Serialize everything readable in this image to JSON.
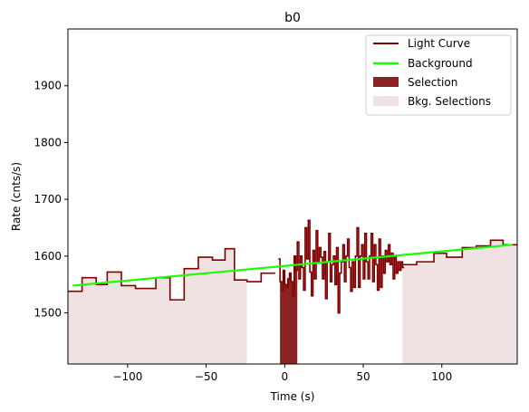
{
  "chart_data": {
    "type": "line",
    "title": "b0",
    "xlabel": "Time (s)",
    "ylabel": "Rate (cnts/s)",
    "xlim": [
      -138,
      148
    ],
    "ylim": [
      1410,
      2000
    ],
    "xticks": [
      -100,
      -50,
      0,
      50,
      100
    ],
    "yticks": [
      1500,
      1600,
      1700,
      1800,
      1900
    ],
    "grid": false,
    "legend_position": "top-right",
    "legend": [
      "Light Curve",
      "Background",
      "Selection",
      "Bkg. Selections"
    ],
    "colors": {
      "light_curve": "#800000",
      "background": "#19ff00",
      "selection": "#8b2323",
      "bkg_selection": "#f0e2e2"
    },
    "bkg_selections": [
      [
        -138,
        -24
      ],
      [
        75,
        148
      ]
    ],
    "selection": [
      -3,
      8
    ],
    "background_line": {
      "x": [
        -135,
        145
      ],
      "y": [
        1548,
        1620
      ]
    },
    "light_curve_coarse_left": {
      "edges": [
        -138,
        -129,
        -120,
        -113,
        -104,
        -95,
        -82,
        -73,
        -64,
        -55,
        -46,
        -38,
        -32,
        -24,
        -15,
        -6
      ],
      "values": [
        1538,
        1562,
        1550,
        1572,
        1548,
        1543,
        1562,
        1523,
        1578,
        1598,
        1593,
        1613,
        1558,
        1555,
        1570
      ]
    },
    "light_curve_fine": {
      "x": [
        -4,
        -3,
        -2,
        -1,
        0,
        1,
        2,
        3,
        4,
        5,
        6,
        7,
        8,
        9,
        10,
        11,
        12,
        13,
        14,
        15,
        16,
        17,
        18,
        19,
        20,
        21,
        22,
        23,
        24,
        25,
        26,
        27,
        28,
        29,
        30,
        31,
        32,
        33,
        34,
        35,
        36,
        37,
        38,
        39,
        40,
        41,
        42,
        43,
        44,
        45,
        46,
        47,
        48,
        49,
        50,
        51,
        52,
        53,
        54,
        55,
        56,
        57,
        58,
        59,
        60,
        61,
        62,
        63,
        64,
        65,
        66,
        67,
        68,
        69,
        70,
        71,
        72,
        73,
        74,
        75
      ],
      "values": [
        1595,
        1555,
        1540,
        1575,
        1550,
        1545,
        1560,
        1570,
        1555,
        1530,
        1600,
        1575,
        1625,
        1560,
        1600,
        1580,
        1540,
        1650,
        1595,
        1663,
        1572,
        1530,
        1610,
        1560,
        1645,
        1590,
        1615,
        1598,
        1560,
        1608,
        1525,
        1590,
        1640,
        1555,
        1585,
        1600,
        1550,
        1615,
        1500,
        1570,
        1590,
        1620,
        1555,
        1600,
        1630,
        1580,
        1538,
        1590,
        1545,
        1600,
        1650,
        1545,
        1600,
        1620,
        1560,
        1640,
        1590,
        1560,
        1600,
        1640,
        1555,
        1620,
        1585,
        1540,
        1630,
        1545,
        1600,
        1570,
        1610,
        1590,
        1620,
        1585,
        1605,
        1560,
        1600,
        1570,
        1590,
        1575,
        1590,
        1580
      ]
    },
    "light_curve_coarse_right": {
      "edges": [
        75,
        84,
        95,
        103,
        113,
        122,
        131,
        139,
        148
      ],
      "values": [
        1585,
        1590,
        1605,
        1598,
        1615,
        1618,
        1628,
        1620
      ]
    }
  }
}
